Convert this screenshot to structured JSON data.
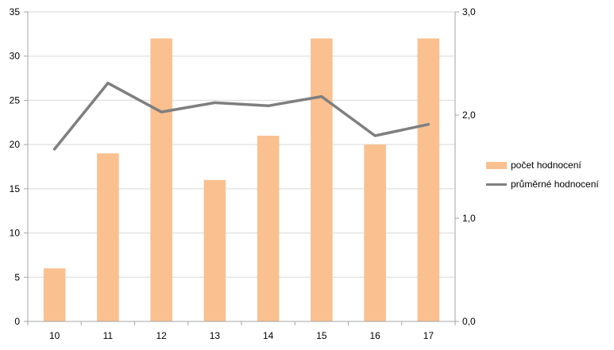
{
  "chart_data": {
    "type": "bar",
    "title": "",
    "xlabel": "",
    "ylabel": "",
    "categories": [
      "10",
      "11",
      "12",
      "13",
      "14",
      "15",
      "16",
      "17"
    ],
    "series": [
      {
        "name": "počet hodnocení",
        "type": "bar",
        "axis": "left",
        "color": "#FAC090",
        "values": [
          6,
          19,
          32,
          16,
          21,
          32,
          20,
          32
        ]
      },
      {
        "name": "průměrné hodnocení",
        "type": "line",
        "axis": "right",
        "color": "#7F7F7F",
        "values": [
          1.67,
          2.31,
          2.03,
          2.12,
          2.09,
          2.18,
          1.8,
          1.91
        ]
      }
    ],
    "ylim": [
      0,
      35
    ],
    "yticks": [
      "0",
      "5",
      "10",
      "15",
      "20",
      "25",
      "30",
      "35"
    ],
    "y2lim": [
      0,
      3.0
    ],
    "y2ticks": [
      "0,0",
      "1,0",
      "2,0",
      "3,0"
    ],
    "grid": true,
    "legend": "right"
  }
}
